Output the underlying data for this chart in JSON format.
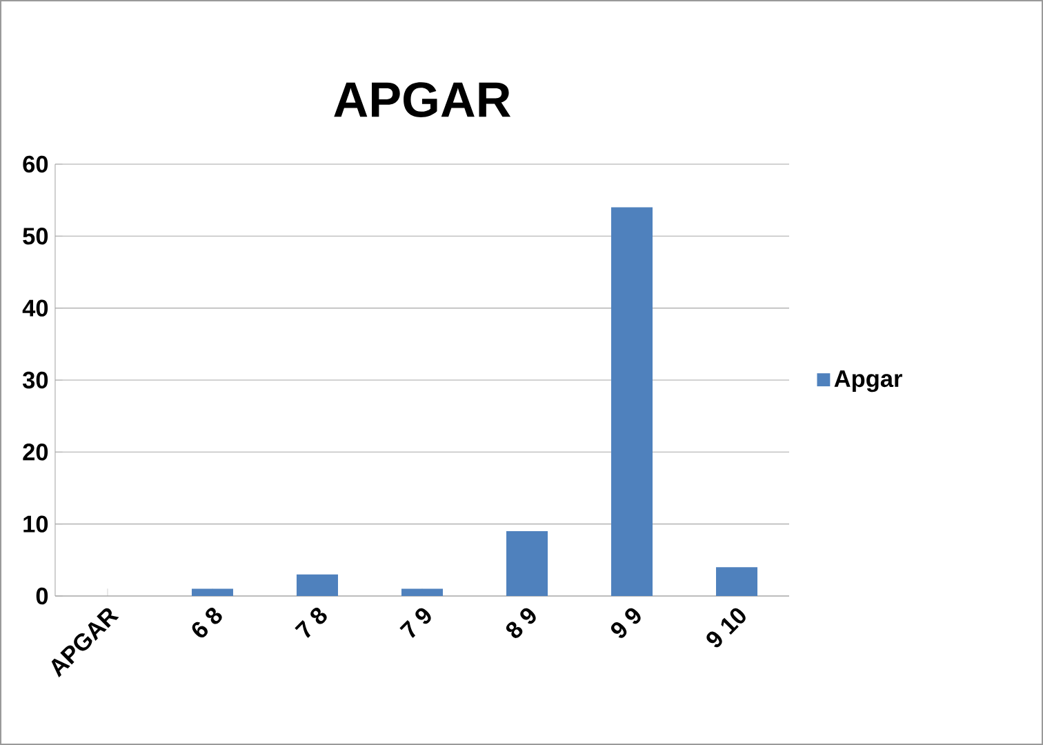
{
  "chart_data": {
    "type": "bar",
    "title": "APGAR",
    "categories": [
      "APGAR",
      "6 8",
      "7 8",
      "7 9",
      "8 9",
      "9 9",
      "9 10"
    ],
    "series": [
      {
        "name": "Apgar",
        "color": "#4f81bd",
        "values": [
          null,
          1,
          3,
          1,
          9,
          54,
          4
        ]
      }
    ],
    "ylim": [
      0,
      60
    ],
    "yticks": [
      0,
      10,
      20,
      30,
      40,
      50,
      60
    ],
    "grid": "y",
    "legend": "right"
  }
}
